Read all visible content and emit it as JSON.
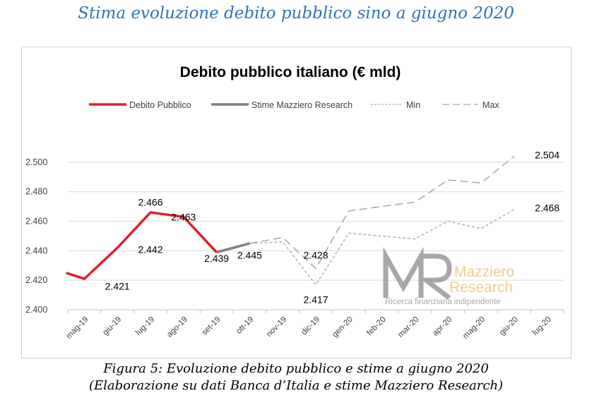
{
  "page": {
    "heading": "Stima evoluzione debito pubblico sino a giugno 2020",
    "caption_line1": "Figura 5: Evoluzione debito pubblico e stime a giugno 2020",
    "caption_line2": "(Elaborazione su dati Banca d’Italia e stime Mazziero Research)"
  },
  "logo": {
    "letters": "MR",
    "name_line1": "Mazziero",
    "name_line2": "Research",
    "tagline": "Ricerca finanziaria indipendente"
  },
  "chart_data": {
    "type": "line",
    "title": "Debito pubblico italiano (€ mld)",
    "xlabel": "",
    "ylabel": "",
    "categories": [
      "mag-19",
      "giu-19",
      "lug-19",
      "ago-19",
      "set-19",
      "ott-19",
      "nov-19",
      "dic-19",
      "gen-20",
      "feb-20",
      "mar-20",
      "apr-20",
      "mag-20",
      "giu-20",
      "lug-20"
    ],
    "y_ticks": [
      "2.400",
      "2.420",
      "2.440",
      "2.460",
      "2.480",
      "2.500"
    ],
    "ylim": [
      2400,
      2510
    ],
    "grid": true,
    "legend_position": "top",
    "series": [
      {
        "name": "Debito Pubblico",
        "color": "#e0202a",
        "style": "solid",
        "x": [
          "pre",
          "mag-19",
          "giu-19",
          "lug-19",
          "ago-19",
          "set-19"
        ],
        "values": [
          2425,
          2421,
          2442,
          2466,
          2463,
          2439
        ]
      },
      {
        "name": "Stime Mazziero Research",
        "color": "#7f7f7f",
        "style": "solid",
        "x": [
          "set-19",
          "ott-19"
        ],
        "values": [
          2439,
          2445
        ]
      },
      {
        "name": "Min",
        "color": "#b0b0b0",
        "style": "short-dash",
        "x": [
          "ott-19",
          "nov-19",
          "dic-19",
          "gen-20",
          "feb-20",
          "mar-20",
          "apr-20",
          "mag-20",
          "giu-20"
        ],
        "values": [
          2445,
          2446,
          2417,
          2452,
          2450,
          2448,
          2460,
          2455,
          2468
        ]
      },
      {
        "name": "Max",
        "color": "#a6a6a6",
        "style": "long-dash",
        "x": [
          "ott-19",
          "nov-19",
          "dic-19",
          "gen-20",
          "feb-20",
          "mar-20",
          "apr-20",
          "mag-20",
          "giu-20"
        ],
        "values": [
          2445,
          2449,
          2428,
          2467,
          2470,
          2473,
          2488,
          2486,
          2504
        ]
      }
    ],
    "data_labels": [
      {
        "text": "2.421",
        "x": "giu-19",
        "y": 2416
      },
      {
        "text": "2.442",
        "x": "lug-19",
        "y": 2441
      },
      {
        "text": "2.466",
        "x": "lug-19",
        "y": 2473
      },
      {
        "text": "2.463",
        "x": "ago-19",
        "y": 2463
      },
      {
        "text": "2.439",
        "x": "set-19",
        "y": 2435
      },
      {
        "text": "2.445",
        "x": "ott-19",
        "y": 2437
      },
      {
        "text": "2.428",
        "x": "dic-19",
        "y": 2437
      },
      {
        "text": "2.417",
        "x": "dic-19",
        "y": 2407
      },
      {
        "text": "2.504",
        "x": "lug-20",
        "y": 2505
      },
      {
        "text": "2.468",
        "x": "lug-20",
        "y": 2469
      }
    ]
  }
}
